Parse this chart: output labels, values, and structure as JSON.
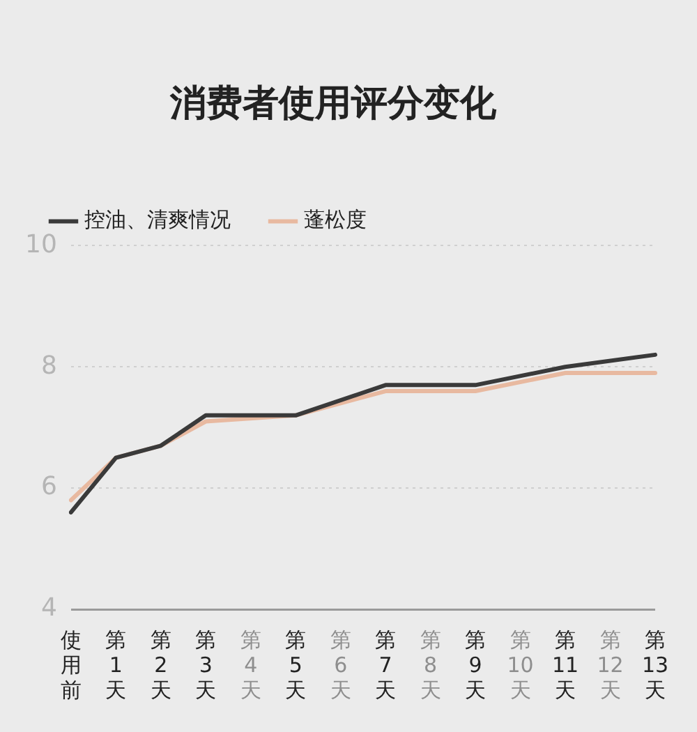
{
  "chart_data": {
    "type": "line",
    "title": "消费者使用评分变化",
    "categories": [
      "使用前",
      "第1天",
      "第2天",
      "第3天",
      "第4天",
      "第5天",
      "第6天",
      "第7天",
      "第8天",
      "第9天",
      "第10天",
      "第11天",
      "第12天",
      "第13天"
    ],
    "series": [
      {
        "name": "控油、清爽情况",
        "color": "#3a3a3a",
        "values": [
          5.6,
          6.5,
          6.7,
          7.2,
          null,
          7.2,
          null,
          7.7,
          null,
          7.7,
          null,
          8.0,
          null,
          8.2
        ]
      },
      {
        "name": "蓬松度",
        "color": "#e8b9a0",
        "values": [
          5.8,
          6.5,
          6.7,
          7.1,
          null,
          7.2,
          null,
          7.6,
          null,
          7.6,
          null,
          7.9,
          null,
          7.9
        ]
      }
    ],
    "ylim": [
      4,
      10
    ],
    "yticks": [
      4,
      6,
      8,
      10
    ],
    "grid": "y",
    "legend": "top left",
    "marker": "none",
    "line_style": "solid"
  }
}
